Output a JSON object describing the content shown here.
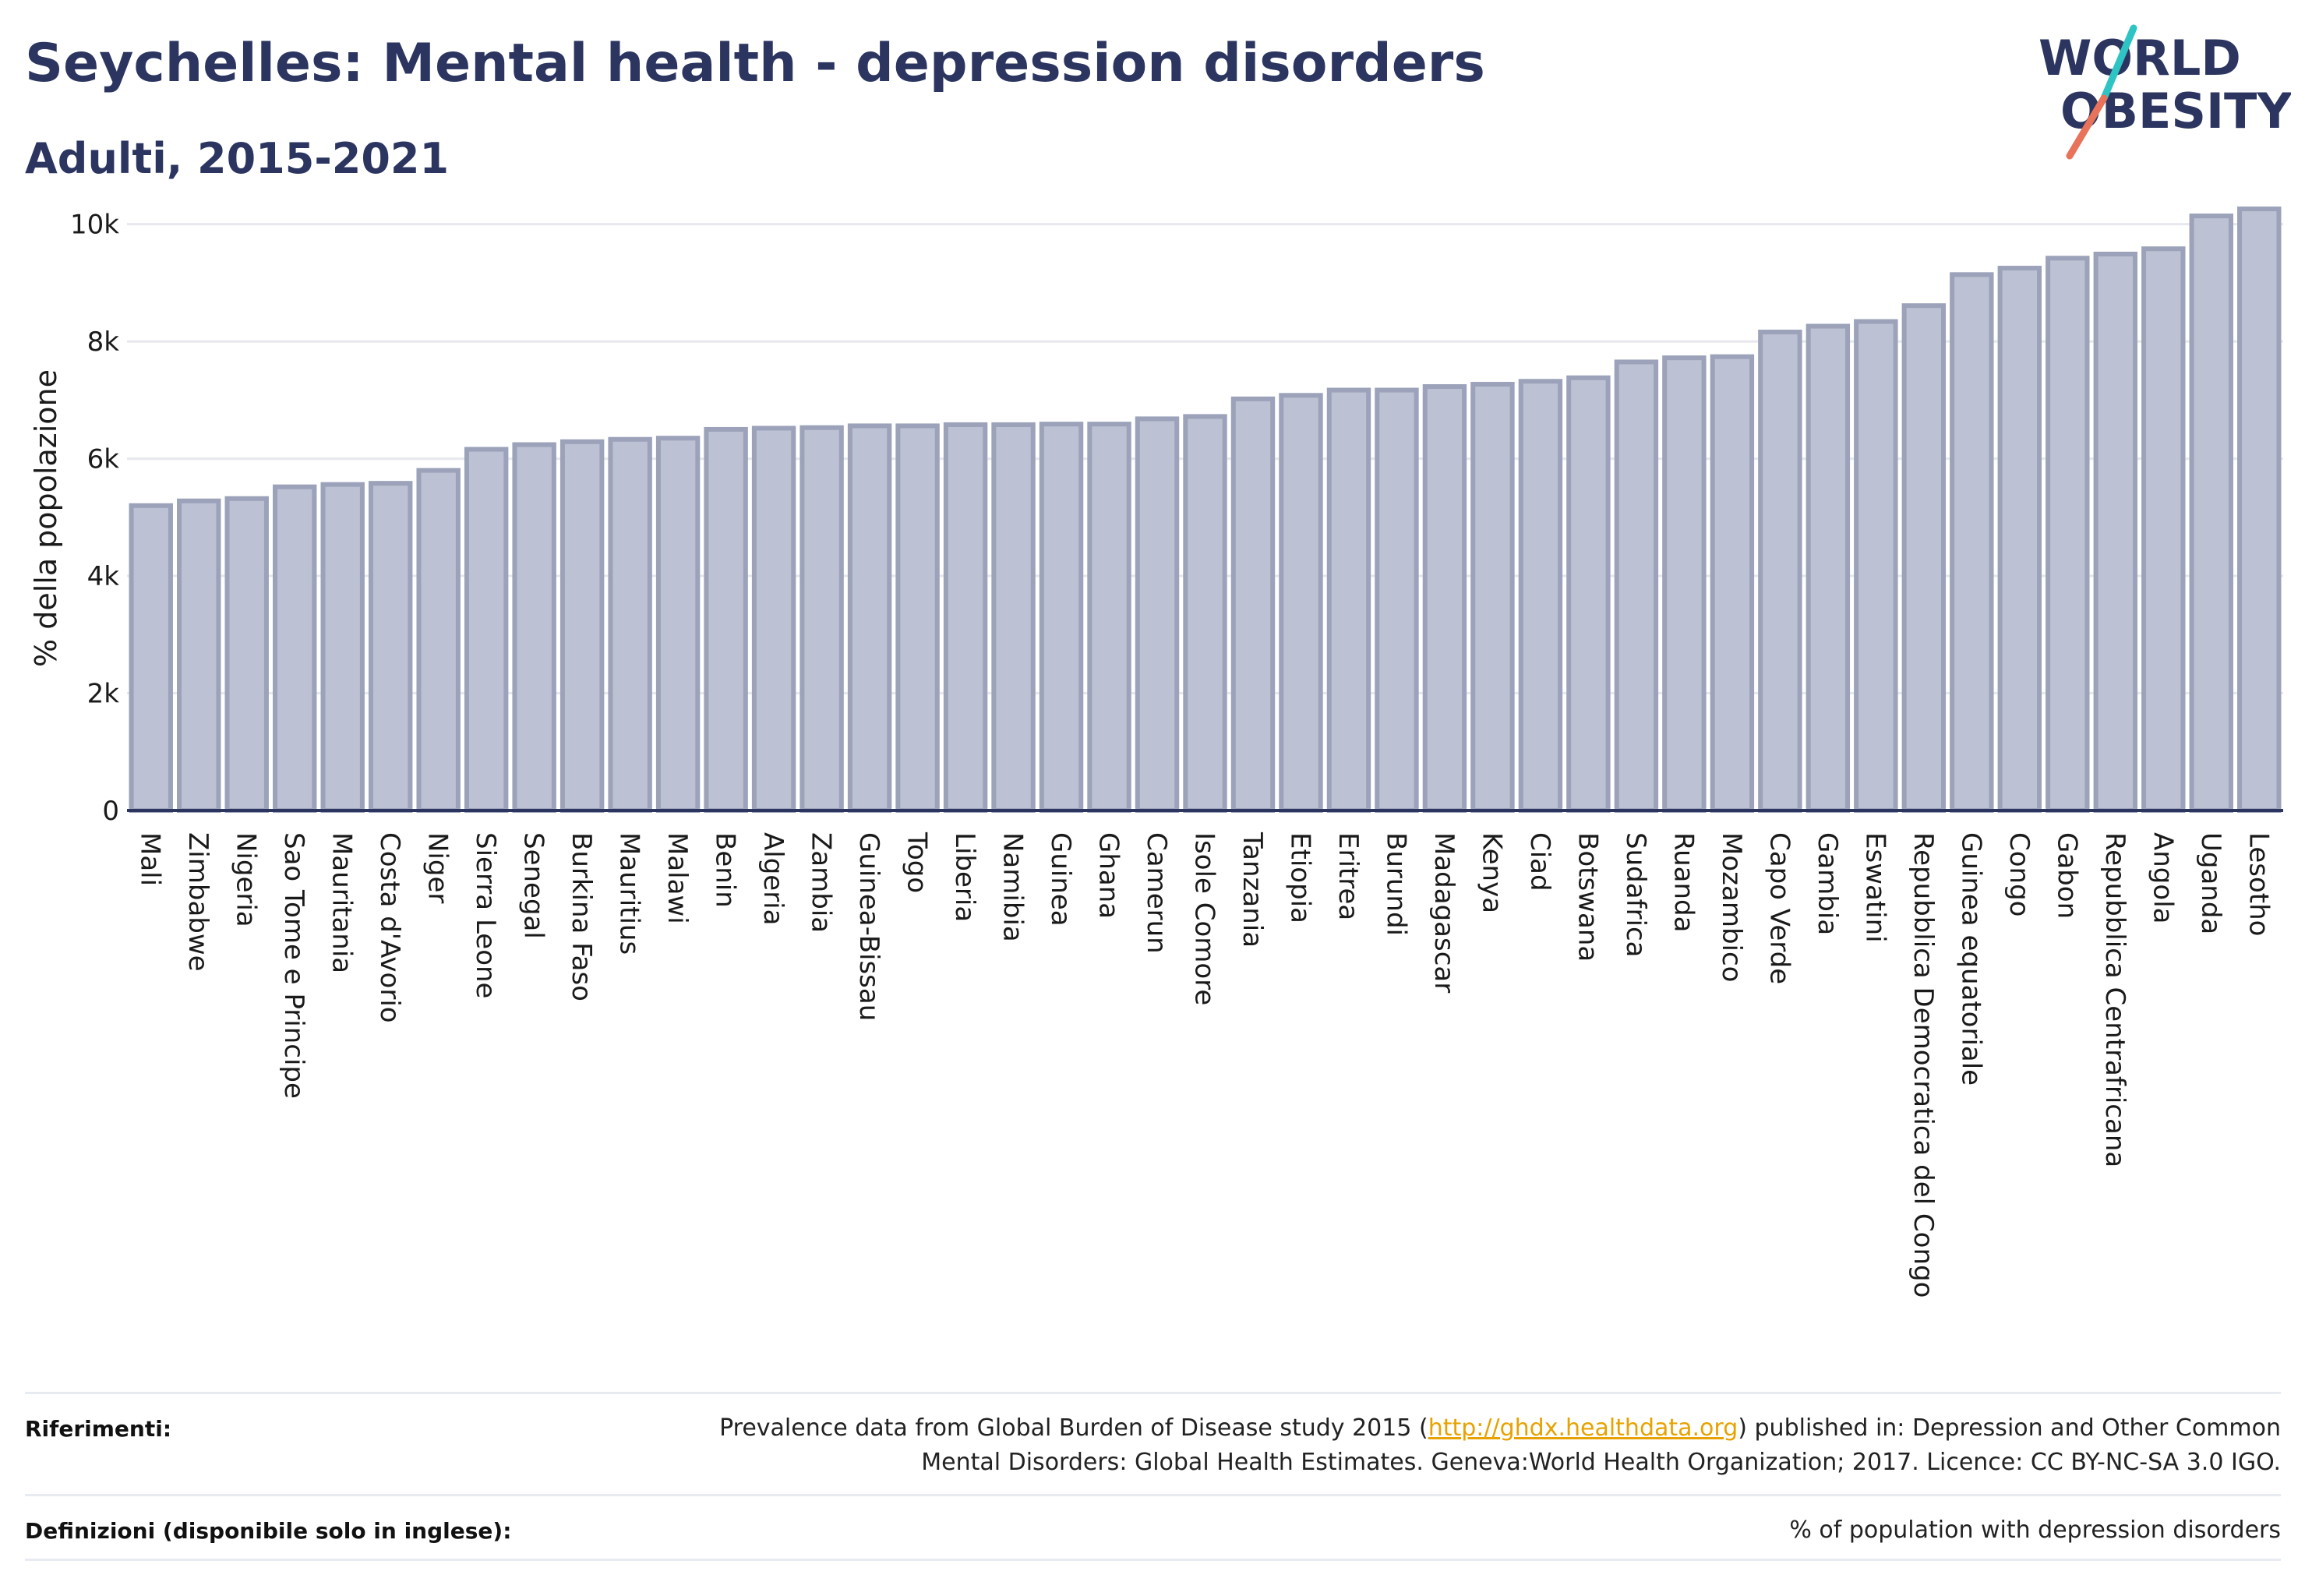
{
  "header": {
    "title": "Seychelles: Mental health - depression disorders",
    "subtitle": "Adulti, 2015-2021"
  },
  "logo": {
    "line1": "WORLD",
    "line2": "OBESITY",
    "icon": "world-obesity-logo",
    "accent1": "#2ec4c4",
    "accent2": "#e8735a",
    "text_color": "#2b3560"
  },
  "chart_data": {
    "type": "bar",
    "ylabel": "% della popolazione",
    "ylim": [
      0,
      10500
    ],
    "yticks": [
      0,
      2000,
      4000,
      6000,
      8000,
      10000
    ],
    "ytick_labels": [
      "0",
      "2k",
      "4k",
      "6k",
      "8k",
      "10k"
    ],
    "grid": true,
    "bar_color": "#bcc1d3",
    "bar_edge": "#9ba2b9",
    "categories": [
      "Mali",
      "Zimbabwe",
      "Nigeria",
      "Sao Tome e Principe",
      "Mauritania",
      "Costa d'Avorio",
      "Niger",
      "Sierra Leone",
      "Senegal",
      "Burkina Faso",
      "Mauritius",
      "Malawi",
      "Benin",
      "Algeria",
      "Zambia",
      "Guinea-Bissau",
      "Togo",
      "Liberia",
      "Namibia",
      "Guinea",
      "Ghana",
      "Camerun",
      "Isole Comore",
      "Tanzania",
      "Etiopia",
      "Eritrea",
      "Burundi",
      "Madagascar",
      "Kenya",
      "Ciad",
      "Botswana",
      "Sudafrica",
      "Ruanda",
      "Mozambico",
      "Capo Verde",
      "Gambia",
      "Eswatini",
      "Repubblica Democratica del Congo",
      "Guinea equatoriale",
      "Congo",
      "Gabon",
      "Repubblica Centrafricana",
      "Angola",
      "Uganda",
      "Lesotho"
    ],
    "values": [
      5200,
      5280,
      5320,
      5520,
      5560,
      5580,
      5800,
      6160,
      6240,
      6290,
      6330,
      6350,
      6500,
      6520,
      6530,
      6560,
      6560,
      6580,
      6580,
      6590,
      6590,
      6680,
      6720,
      7020,
      7080,
      7170,
      7170,
      7230,
      7270,
      7320,
      7380,
      7650,
      7720,
      7740,
      8160,
      8260,
      8340,
      8610,
      9140,
      9250,
      9420,
      9490,
      9580,
      10140,
      10260
    ]
  },
  "footer": {
    "ref_label": "Riferimenti:",
    "ref_text_pre": "Prevalence data from Global Burden of Disease study 2015 (",
    "ref_link": "http://ghdx.healthdata.org",
    "ref_text_post": ") published in: Depression and Other Common",
    "ref_text_line2": "Mental Disorders: Global Health Estimates. Geneva:World Health Organization; 2017. Licence: CC BY-NC-SA 3.0 IGO.",
    "def_label": "Definizioni (disponibile solo in inglese):",
    "def_text": "% of population with depression disorders"
  }
}
